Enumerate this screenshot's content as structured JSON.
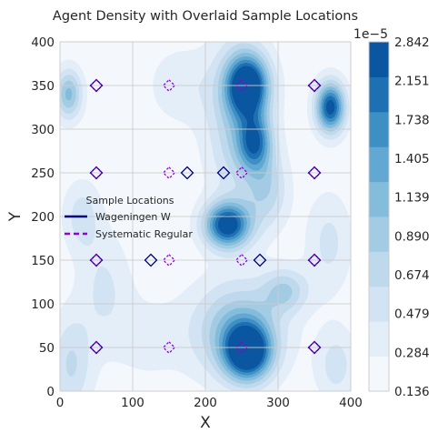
{
  "chart_data": {
    "type": "contour",
    "title": "Agent Density with Overlaid Sample Locations",
    "xlabel": "X",
    "ylabel": "Y",
    "xlim": [
      0,
      400
    ],
    "ylim": [
      0,
      400
    ],
    "x_ticks": [
      0,
      100,
      200,
      300,
      400
    ],
    "y_ticks": [
      0,
      50,
      100,
      150,
      200,
      250,
      300,
      350,
      400
    ],
    "grid": true,
    "colormap": "Blues",
    "colorbar": {
      "offset_label": "1e−5",
      "levels": [
        "0.136",
        "0.284",
        "0.479",
        "0.674",
        "0.890",
        "1.139",
        "1.405",
        "1.738",
        "2.151",
        "2.842"
      ],
      "colors": [
        "#f4f8fd",
        "#e3eef9",
        "#d2e3f3",
        "#bed8ec",
        "#a3cbe4",
        "#84bcdb",
        "#63a8d3",
        "#3d8fc4",
        "#1f70b2",
        "#0a56a0"
      ]
    },
    "density_blobs": [
      {
        "x": 258,
        "y": 350,
        "sx": 20,
        "sy": 24,
        "w": 1.0
      },
      {
        "x": 268,
        "y": 285,
        "sx": 16,
        "sy": 22,
        "w": 0.65
      },
      {
        "x": 245,
        "y": 310,
        "sx": 30,
        "sy": 65,
        "w": 0.38
      },
      {
        "x": 230,
        "y": 190,
        "sx": 22,
        "sy": 18,
        "w": 0.97
      },
      {
        "x": 258,
        "y": 45,
        "sx": 22,
        "sy": 22,
        "w": 1.0
      },
      {
        "x": 245,
        "y": 70,
        "sx": 42,
        "sy": 38,
        "w": 0.5
      },
      {
        "x": 310,
        "y": 115,
        "sx": 22,
        "sy": 18,
        "w": 0.34
      },
      {
        "x": 372,
        "y": 325,
        "sx": 14,
        "sy": 20,
        "w": 0.95
      },
      {
        "x": 12,
        "y": 340,
        "sx": 13,
        "sy": 20,
        "w": 0.5
      },
      {
        "x": 30,
        "y": 200,
        "sx": 18,
        "sy": 28,
        "w": 0.22
      },
      {
        "x": 15,
        "y": 30,
        "sx": 20,
        "sy": 40,
        "w": 0.28
      },
      {
        "x": 60,
        "y": 120,
        "sx": 25,
        "sy": 45,
        "w": 0.18
      },
      {
        "x": 370,
        "y": 170,
        "sx": 22,
        "sy": 40,
        "w": 0.2
      },
      {
        "x": 380,
        "y": 30,
        "sx": 20,
        "sy": 30,
        "w": 0.22
      },
      {
        "x": 120,
        "y": 60,
        "sx": 40,
        "sy": 40,
        "w": 0.1
      },
      {
        "x": 165,
        "y": 350,
        "sx": 30,
        "sy": 30,
        "w": 0.15
      },
      {
        "x": 285,
        "y": 230,
        "sx": 20,
        "sy": 30,
        "w": 0.3
      }
    ],
    "legend": {
      "title": "Sample Locations",
      "placement": "center-left",
      "entries": [
        {
          "label": "Wageningen W",
          "color": "#000080",
          "dashed": false
        },
        {
          "label": "Systematic Regular",
          "color": "#9400d3",
          "dashed": true
        }
      ]
    },
    "series": [
      {
        "name": "Wageningen W",
        "marker": "diamond",
        "color": "#000080",
        "points": [
          [
            50,
            350
          ],
          [
            350,
            350
          ],
          [
            50,
            250
          ],
          [
            175,
            250
          ],
          [
            225,
            250
          ],
          [
            350,
            250
          ],
          [
            50,
            150
          ],
          [
            125,
            150
          ],
          [
            275,
            150
          ],
          [
            350,
            150
          ],
          [
            50,
            50
          ],
          [
            350,
            50
          ]
        ]
      },
      {
        "name": "Systematic Regular",
        "marker": "diamond",
        "color": "#9400d3",
        "dashed": true,
        "points": [
          [
            50,
            350
          ],
          [
            150,
            350
          ],
          [
            250,
            350
          ],
          [
            350,
            350
          ],
          [
            50,
            250
          ],
          [
            150,
            250
          ],
          [
            250,
            250
          ],
          [
            350,
            250
          ],
          [
            50,
            150
          ],
          [
            150,
            150
          ],
          [
            250,
            150
          ],
          [
            350,
            150
          ],
          [
            50,
            50
          ],
          [
            150,
            50
          ],
          [
            250,
            50
          ],
          [
            350,
            50
          ]
        ]
      }
    ]
  }
}
